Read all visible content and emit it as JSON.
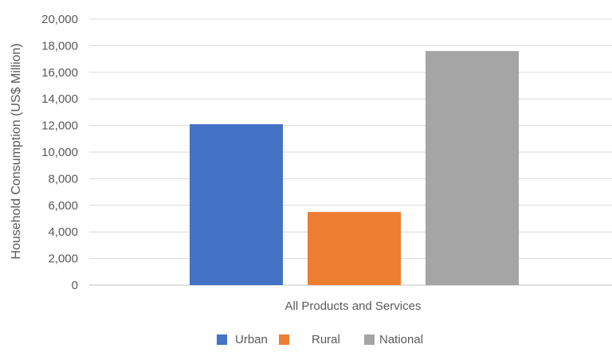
{
  "chart_data": {
    "type": "bar",
    "categories": [
      "All Products and Services"
    ],
    "series": [
      {
        "name": "Urban",
        "values": [
          12100
        ],
        "color": "#4472C4"
      },
      {
        "name": "Rural",
        "values": [
          5500
        ],
        "color": "#ED7D31"
      },
      {
        "name": "National",
        "values": [
          17600
        ],
        "color": "#A5A5A5"
      }
    ],
    "title": "",
    "xlabel": "All Products and Services",
    "ylabel": "Household Consumption (US$ Million)",
    "ylim": [
      0,
      20000
    ],
    "yticks": [
      "0",
      "2,000",
      "4,000",
      "6,000",
      "8,000",
      "10,000",
      "12,000",
      "14,000",
      "16,000",
      "18,000",
      "20,000"
    ],
    "grid": true,
    "legend": "bottom"
  }
}
